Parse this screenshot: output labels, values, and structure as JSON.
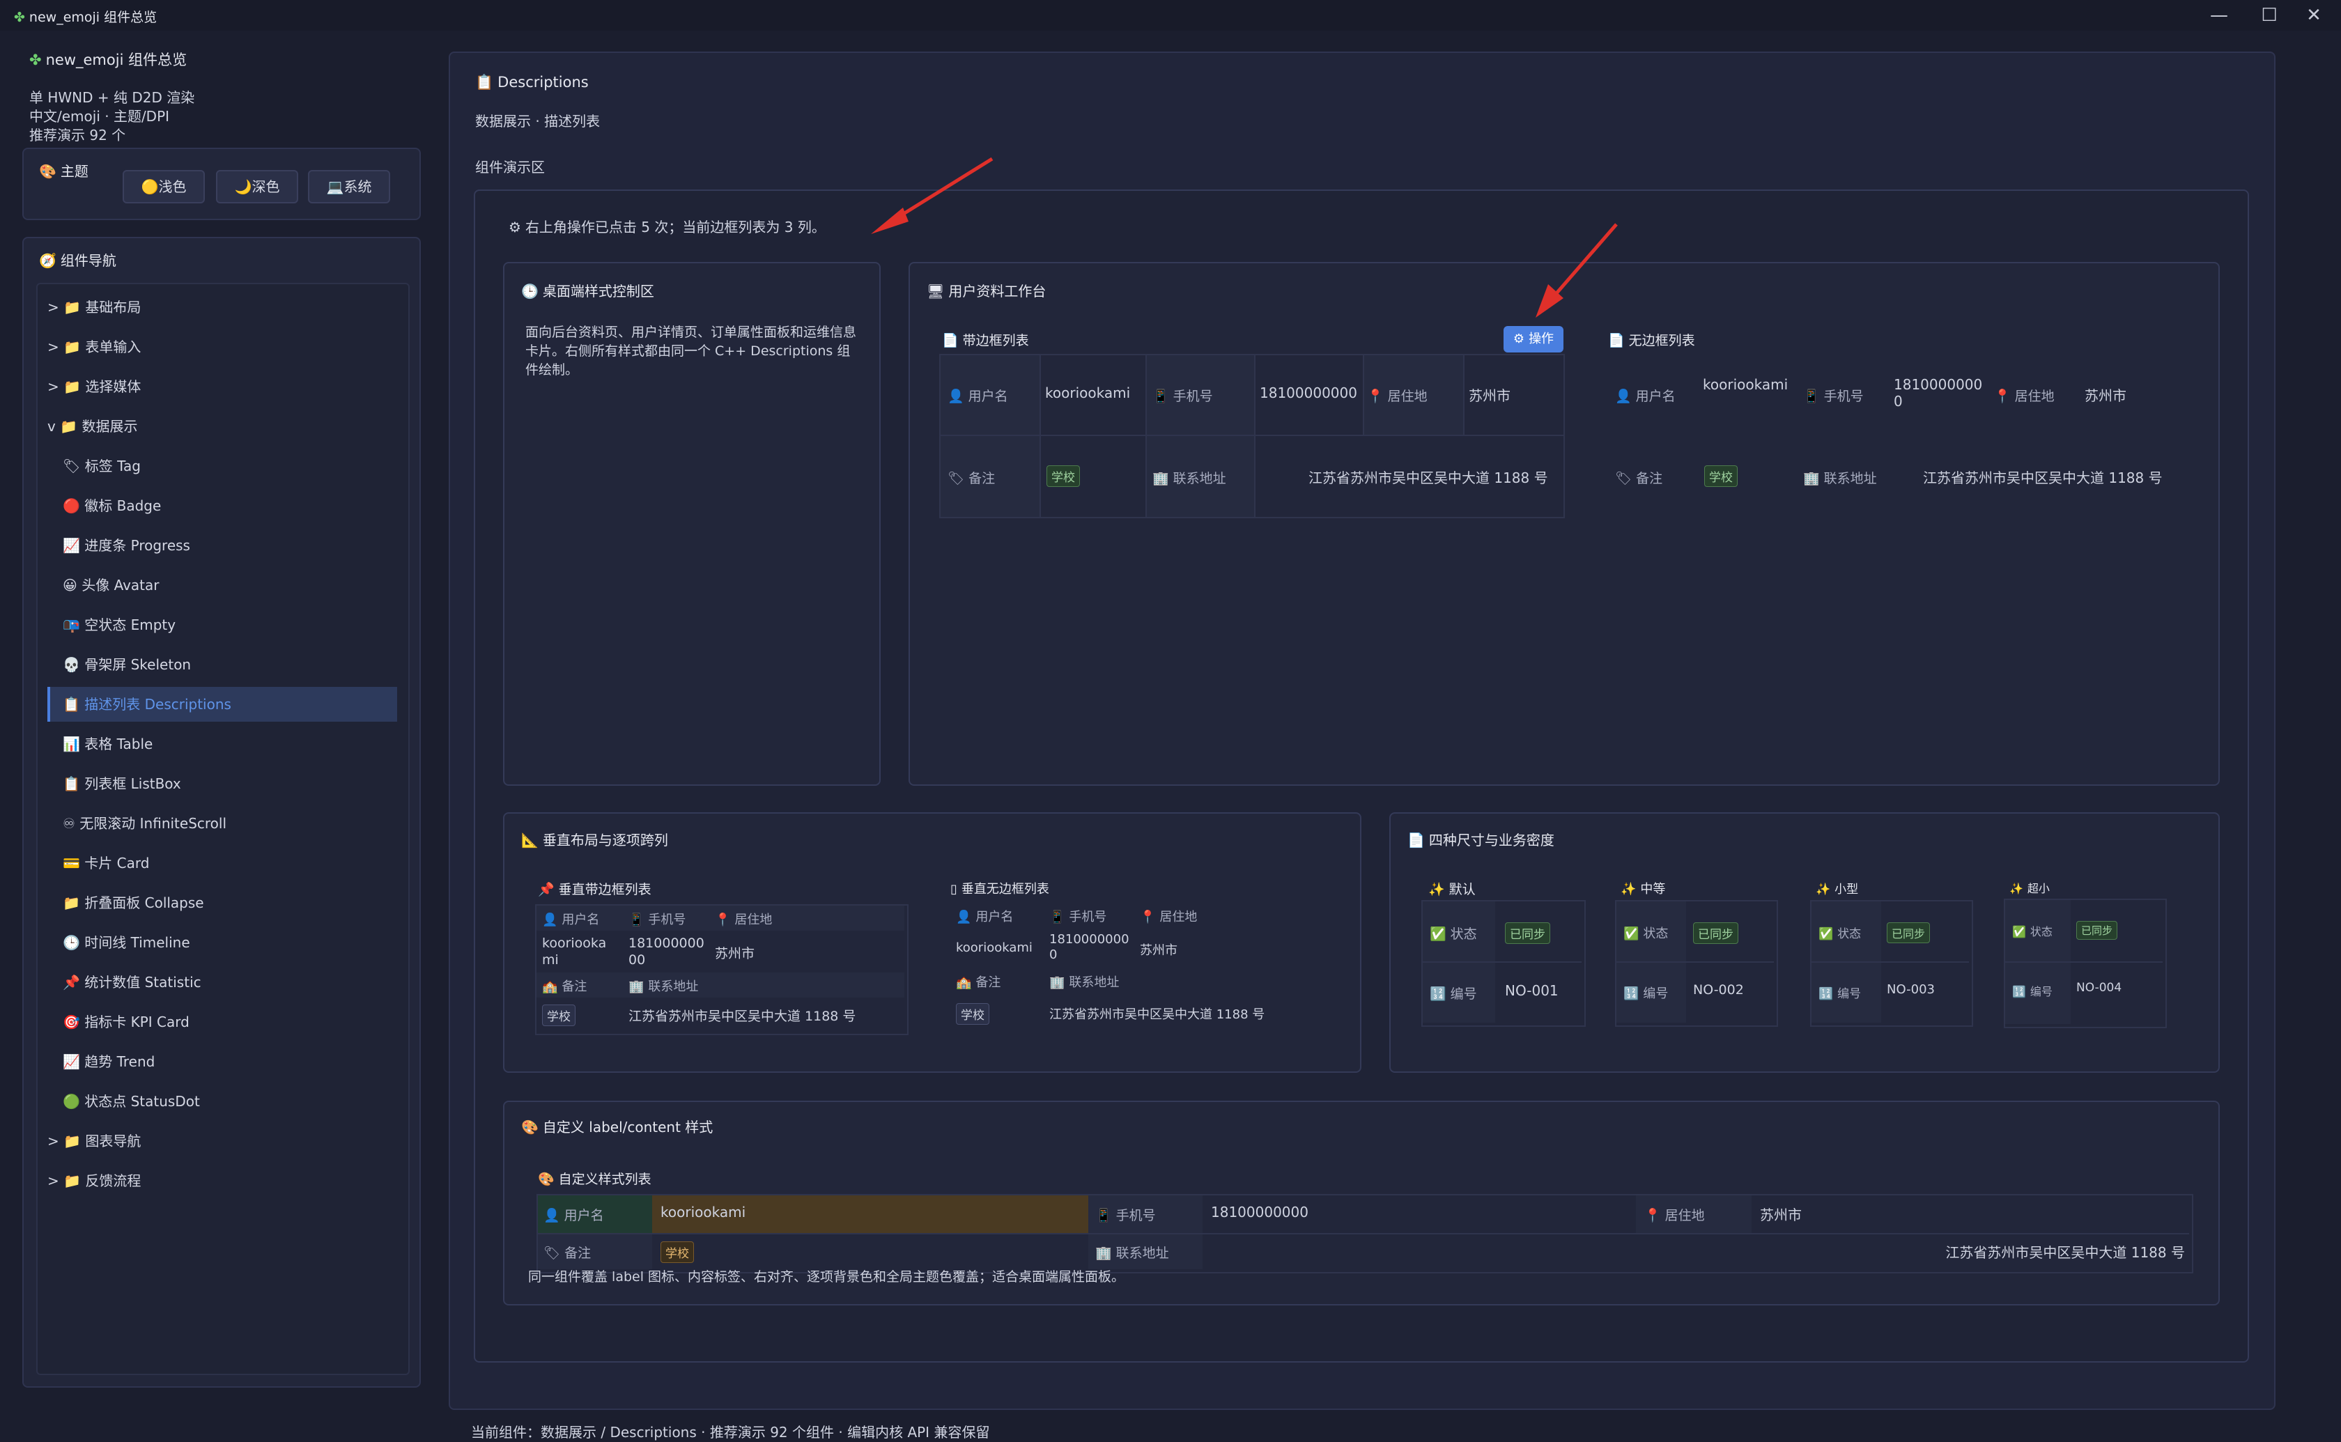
{
  "window": {
    "title": "new_emoji 组件总览",
    "controls": [
      "—",
      "☐",
      "✕"
    ]
  },
  "sidebar": {
    "app_title": "new_emoji 组件总览",
    "info": [
      "单 HWND + 纯 D2D 渲染",
      "中文/emoji · 主题/DPI",
      "推荐演示 92 个"
    ],
    "theme": {
      "label": "主题",
      "buttons": [
        "🟡浅色",
        "🌙深色",
        "💻系统"
      ]
    },
    "nav_title": "组件导航",
    "items": [
      {
        "label": "> 📁 基础布局"
      },
      {
        "label": "> 📁 表单输入"
      },
      {
        "label": "> 📁 选择媒体"
      },
      {
        "label": "v 📁 数据展示"
      },
      {
        "label": "🏷 标签 Tag"
      },
      {
        "label": "🔴 徽标 Badge"
      },
      {
        "label": "📈 进度条 Progress"
      },
      {
        "label": "😀 头像 Avatar"
      },
      {
        "label": "📭 空状态 Empty"
      },
      {
        "label": "💀 骨架屏 Skeleton"
      },
      {
        "label": "📋 描述列表 Descriptions"
      },
      {
        "label": "📊 表格 Table"
      },
      {
        "label": "📋 列表框 ListBox"
      },
      {
        "label": "♾ 无限滚动 InfiniteScroll"
      },
      {
        "label": "💳 卡片 Card"
      },
      {
        "label": "📁 折叠面板 Collapse"
      },
      {
        "label": "🕒 时间线 Timeline"
      },
      {
        "label": "📌 统计数值 Statistic"
      },
      {
        "label": "🎯 指标卡 KPI Card"
      },
      {
        "label": "📈 趋势 Trend"
      },
      {
        "label": "🟢 状态点 StatusDot"
      },
      {
        "label": "> 📁 图表导航"
      },
      {
        "label": "> 📁 反馈流程"
      }
    ]
  },
  "main": {
    "title": "Descriptions",
    "subtitle": "数据展示 · 描述列表",
    "demo_area": "组件演示区",
    "status_msg": "右上角操作已点击 5 次；当前边框列表为 3 列。",
    "control_card": {
      "title": "桌面端样式控制区",
      "desc": "面向后台资料页、用户详情页、订单属性面板和运维信息卡片。右侧所有样式都由同一个 C++ Descriptions 组件绘制。"
    },
    "workbench": {
      "title": "用户资料工作台",
      "bordered_title": "带边框列表",
      "action_button": "操作",
      "borderless_title": "无边框列表"
    },
    "fields": {
      "username_label": "用户名",
      "username": "kooriookami",
      "phone_label": "手机号",
      "phone": "18100000000",
      "city_label": "居住地",
      "city": "苏州市",
      "remark_label": "备注",
      "remark": "学校",
      "address_label": "联系地址",
      "address": "江苏省苏州市吴中区吴中大道 1188 号"
    },
    "vertical": {
      "title": "垂直布局与逐项跨列",
      "bordered_title": "垂直带边框列表",
      "borderless_title": "垂直无边框列表"
    },
    "sizes": {
      "title": "四种尺寸与业务密度",
      "columns": [
        {
          "name": "默认",
          "status": "已同步",
          "code": "NO-001"
        },
        {
          "name": "中等",
          "status": "已同步",
          "code": "NO-002"
        },
        {
          "name": "小型",
          "status": "已同步",
          "code": "NO-003"
        },
        {
          "name": "超小",
          "status": "已同步",
          "code": "NO-004"
        }
      ],
      "status_label": "状态",
      "code_label": "编号"
    },
    "custom": {
      "title": "自定义 label/content 样式",
      "list_title": "自定义样式列表",
      "note": "同一组件覆盖 label 图标、内容标签、右对齐、逐项背景色和全局主题色覆盖；适合桌面端属性面板。"
    },
    "footer": "当前组件：数据展示 / Descriptions · 推荐演示 92 个组件 · 编辑内核 API 兼容保留"
  },
  "colors": {
    "accent": "#4a7fe0",
    "arrow": "#e0302a",
    "tag_green": "#9fd29f"
  }
}
